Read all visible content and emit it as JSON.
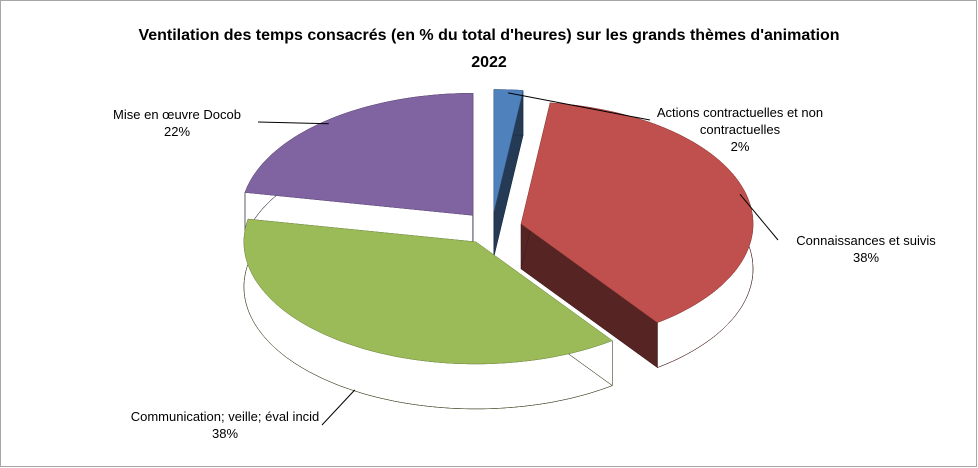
{
  "chart_data": {
    "type": "pie",
    "title": "Ventilation des temps consacrés (en % du total d'heures) sur les grands thèmes d'animation 2022",
    "categories": [
      "Actions contractuelles et non contractuelles",
      "Connaissances et suivis",
      "Communication; veille; éval incid",
      "Mise en œuvre Docob"
    ],
    "values": [
      2,
      38,
      38,
      22
    ],
    "value_labels": [
      "2%",
      "38%",
      "38%",
      "22%"
    ],
    "colors": [
      "#4f81bd",
      "#c0504d",
      "#9bbb59",
      "#8064a2"
    ],
    "three_d": true,
    "exploded": true
  }
}
